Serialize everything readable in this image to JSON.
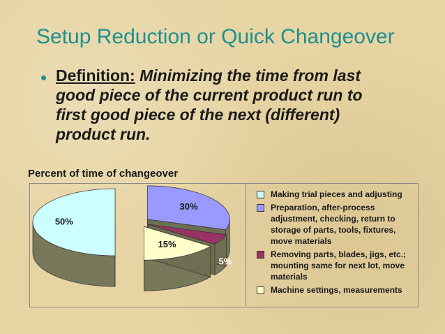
{
  "slide": {
    "title": "Setup Reduction or Quick Changeover",
    "bullet": {
      "label": "Definition:",
      "text": "Minimizing the time from last good piece of the  current product run to first good piece of the next (different) product run."
    }
  },
  "chart_data": {
    "type": "pie",
    "title": "Percent of time of changeover",
    "categories": [
      "Making trial pieces and adjusting",
      "Preparation, after-process adjustment, checking, return to storage of parts, tools, fixtures, move materials",
      "Removing parts, blades, jigs, etc.; mounting same for next lot, move materials",
      "Machine settings, measurements"
    ],
    "values": [
      50,
      30,
      5,
      15
    ],
    "value_labels": [
      "50%",
      "30%",
      "5%",
      "15%"
    ],
    "colors": [
      "#ccffff",
      "#9999ff",
      "#993366",
      "#ffffcc"
    ]
  }
}
